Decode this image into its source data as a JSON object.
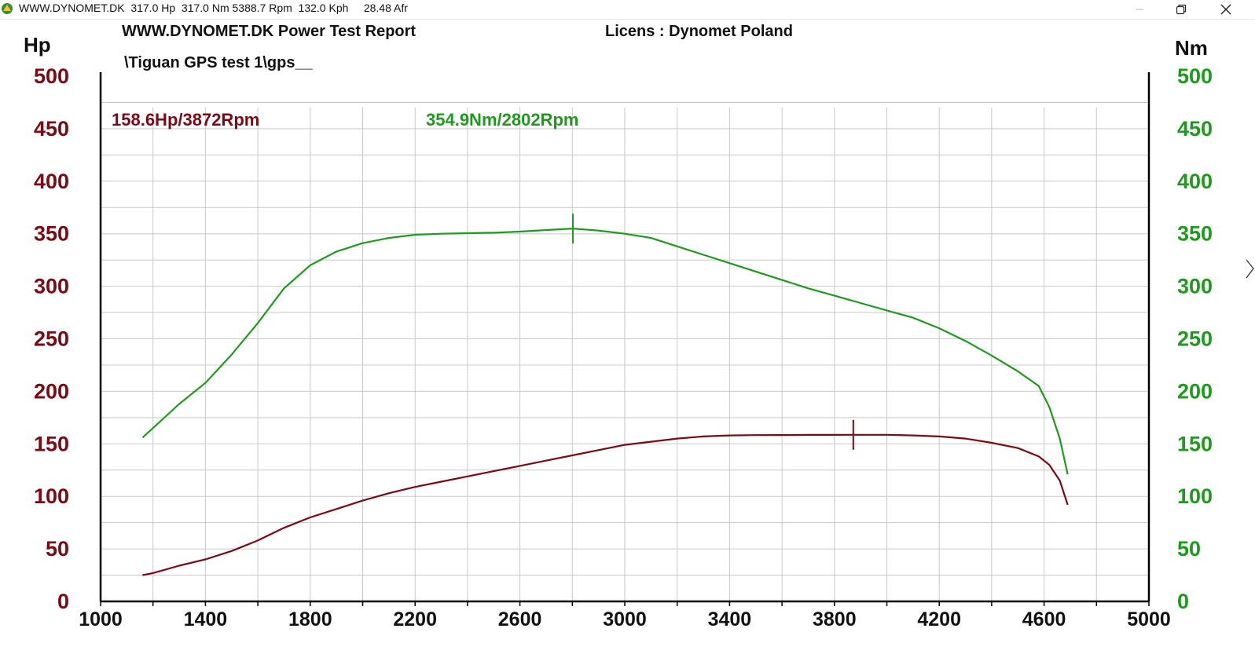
{
  "window": {
    "title": "WWW.DYNOMET.DK  317.0 Hp  317.0 Nm 5388.7 Rpm  132.0 Kph     28.48 Afr"
  },
  "report": {
    "header": "WWW.DYNOMET.DK  Power Test Report",
    "license": "Licens :  Dynomet Poland",
    "file": "\\Tiguan GPS test 1\\gps__"
  },
  "colors": {
    "hp": "#7a0a14",
    "nm": "#1f9a1f",
    "grid": "#c8c8c8",
    "axis": "#000000"
  },
  "chart_data": {
    "type": "line",
    "x": {
      "label": "",
      "range": [
        1000,
        5000
      ],
      "ticks": [
        1000,
        1400,
        1800,
        2200,
        2600,
        3000,
        3400,
        3800,
        4200,
        4600,
        5000
      ]
    },
    "y_left": {
      "label": "Hp",
      "range": [
        0,
        500
      ],
      "ticks": [
        0,
        50,
        100,
        150,
        200,
        250,
        300,
        350,
        400,
        450,
        500
      ]
    },
    "y_right": {
      "label": "Nm",
      "range": [
        0,
        500
      ],
      "ticks": [
        0,
        50,
        100,
        150,
        200,
        250,
        300,
        350,
        400,
        450,
        500
      ]
    },
    "grid": true,
    "series": [
      {
        "name": "Hp",
        "axis": "left",
        "peak_label": "158.6Hp/3872Rpm",
        "peak": [
          3872,
          158.6
        ],
        "points": [
          [
            1160,
            25
          ],
          [
            1200,
            27
          ],
          [
            1300,
            34
          ],
          [
            1400,
            40
          ],
          [
            1500,
            48
          ],
          [
            1600,
            58
          ],
          [
            1700,
            70
          ],
          [
            1800,
            80
          ],
          [
            1900,
            88
          ],
          [
            2000,
            96
          ],
          [
            2100,
            103
          ],
          [
            2200,
            109
          ],
          [
            2300,
            114
          ],
          [
            2400,
            119
          ],
          [
            2500,
            124
          ],
          [
            2600,
            129
          ],
          [
            2700,
            134
          ],
          [
            2800,
            139
          ],
          [
            2900,
            144
          ],
          [
            3000,
            149
          ],
          [
            3100,
            152
          ],
          [
            3200,
            155
          ],
          [
            3300,
            157
          ],
          [
            3400,
            158
          ],
          [
            3500,
            158.3
          ],
          [
            3600,
            158.4
          ],
          [
            3700,
            158.5
          ],
          [
            3800,
            158.5
          ],
          [
            3872,
            158.6
          ],
          [
            4000,
            158.6
          ],
          [
            4100,
            158
          ],
          [
            4200,
            157
          ],
          [
            4300,
            155
          ],
          [
            4400,
            151
          ],
          [
            4500,
            146
          ],
          [
            4580,
            138
          ],
          [
            4620,
            130
          ],
          [
            4660,
            115
          ],
          [
            4690,
            92
          ]
        ]
      },
      {
        "name": "Nm",
        "axis": "right",
        "peak_label": "354.9Nm/2802Rpm",
        "peak": [
          2802,
          354.9
        ],
        "points": [
          [
            1160,
            156
          ],
          [
            1200,
            165
          ],
          [
            1300,
            188
          ],
          [
            1400,
            208
          ],
          [
            1500,
            235
          ],
          [
            1600,
            265
          ],
          [
            1700,
            298
          ],
          [
            1800,
            320
          ],
          [
            1900,
            333
          ],
          [
            2000,
            341
          ],
          [
            2100,
            346
          ],
          [
            2200,
            349
          ],
          [
            2300,
            350
          ],
          [
            2400,
            350.5
          ],
          [
            2500,
            351
          ],
          [
            2600,
            352
          ],
          [
            2700,
            353.5
          ],
          [
            2802,
            354.9
          ],
          [
            2900,
            353
          ],
          [
            3000,
            350
          ],
          [
            3100,
            346
          ],
          [
            3200,
            338
          ],
          [
            3300,
            330
          ],
          [
            3400,
            322
          ],
          [
            3500,
            314
          ],
          [
            3600,
            306
          ],
          [
            3700,
            298
          ],
          [
            3800,
            291
          ],
          [
            3900,
            284
          ],
          [
            4000,
            277
          ],
          [
            4100,
            270
          ],
          [
            4200,
            260
          ],
          [
            4300,
            248
          ],
          [
            4400,
            234
          ],
          [
            4500,
            219
          ],
          [
            4580,
            205
          ],
          [
            4620,
            185
          ],
          [
            4660,
            155
          ],
          [
            4690,
            121
          ]
        ]
      }
    ]
  }
}
